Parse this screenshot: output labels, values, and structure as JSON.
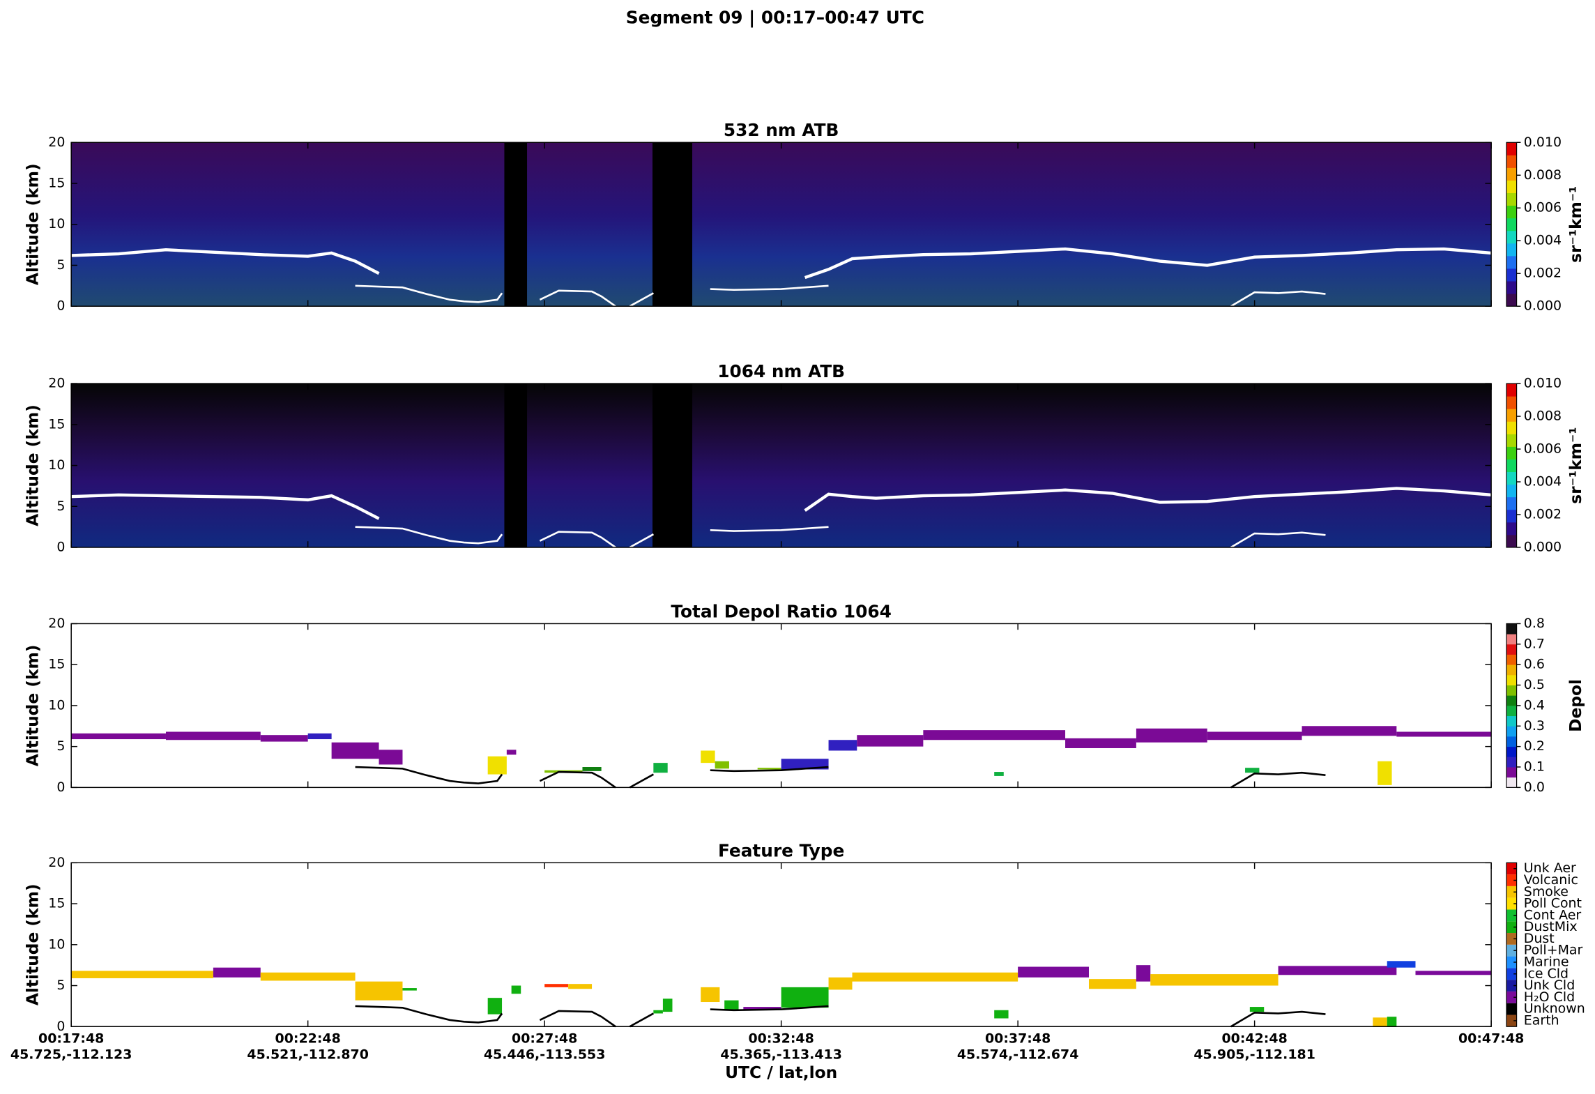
{
  "title": "Segment 09  |  00:17–00:47 UTC",
  "x_axis": {
    "xlim": [
      0,
      30
    ],
    "xlabel": "UTC / lat,lon",
    "xticks": [
      {
        "value": 0,
        "label": "00:17:48",
        "latlon": "45.725,-112.123"
      },
      {
        "value": 5,
        "label": "00:22:48",
        "latlon": "45.521,-112.870"
      },
      {
        "value": 10,
        "label": "00:27:48",
        "latlon": "45.446,-113.553"
      },
      {
        "value": 15,
        "label": "00:32:48",
        "latlon": "45.365,-113.413"
      },
      {
        "value": 20,
        "label": "00:37:48",
        "latlon": "45.574,-112.674"
      },
      {
        "value": 25,
        "label": "00:42:48",
        "latlon": "45.905,-112.181"
      },
      {
        "value": 30,
        "label": "00:47:48"
      }
    ]
  },
  "gaps": [
    [
      9.15,
      9.63
    ],
    [
      12.28,
      13.12
    ]
  ],
  "surface": {
    "x": [
      6.0,
      6.5,
      7.0,
      7.5,
      8.0,
      8.3,
      8.6,
      9.0,
      9.1,
      null,
      9.9,
      10.3,
      11.0,
      11.2,
      11.5,
      null,
      11.8,
      12.3,
      null,
      13.5,
      14.0,
      15.0,
      15.5,
      16.0,
      null,
      24.5,
      25.0,
      25.5,
      26.0,
      26.5
    ],
    "values": [
      2.5,
      2.4,
      2.3,
      1.5,
      0.8,
      0.6,
      0.5,
      0.8,
      1.6,
      null,
      0.8,
      1.9,
      1.8,
      1.2,
      0,
      null,
      0,
      1.6,
      null,
      2.1,
      2.0,
      2.1,
      2.3,
      2.5,
      null,
      0,
      1.7,
      1.6,
      1.8,
      1.5
    ]
  },
  "chart_data": [
    {
      "type": "curtain",
      "title": "532 nm ATB",
      "ylabel": "Altitude (km)",
      "ylim": [
        0,
        20
      ],
      "yticks": [
        0,
        5,
        10,
        15,
        20
      ],
      "background": "atb532",
      "surface_color": "#ffffff",
      "lines": [
        {
          "color": "#ffffff",
          "x": [
            0,
            1,
            2,
            3,
            4,
            5,
            5.5,
            6,
            6.5,
            null,
            15.5,
            16,
            16.5,
            17,
            18,
            19,
            20,
            21,
            22,
            23,
            24,
            25,
            26,
            27,
            28,
            29,
            30
          ],
          "values": [
            6.2,
            6.4,
            6.9,
            6.6,
            6.3,
            6.1,
            6.5,
            5.5,
            4.0,
            null,
            3.5,
            4.5,
            5.8,
            6.0,
            6.3,
            6.4,
            6.7,
            7.0,
            6.4,
            5.5,
            5.0,
            6.0,
            6.2,
            6.5,
            6.9,
            7.0,
            6.5
          ]
        }
      ],
      "colorbar": {
        "lim": [
          0,
          0.01
        ],
        "label": "sr⁻¹km⁻¹",
        "colors": [
          "#3b0a4f",
          "#2d0a8a",
          "#1a2fd0",
          "#1d6ff0",
          "#12b5f0",
          "#14d8c0",
          "#10d860",
          "#3cd010",
          "#a8d800",
          "#f0e000",
          "#f8a000",
          "#f05000",
          "#e00000"
        ],
        "ticks": [
          {
            "value": 0,
            "label": "0.000"
          },
          {
            "value": 0.002,
            "label": "0.002"
          },
          {
            "value": 0.004,
            "label": "0.004"
          },
          {
            "value": 0.006,
            "label": "0.006"
          },
          {
            "value": 0.008,
            "label": "0.008"
          },
          {
            "value": 0.01,
            "label": "0.010"
          }
        ]
      }
    },
    {
      "type": "curtain",
      "title": "1064 nm ATB",
      "ylabel": "Altitude (km)",
      "ylim": [
        0,
        20
      ],
      "yticks": [
        0,
        5,
        10,
        15,
        20
      ],
      "background": "atb1064",
      "surface_color": "#ffffff",
      "lines": [
        {
          "color": "#ffffff",
          "x": [
            0,
            1,
            2,
            3,
            4,
            5,
            5.5,
            6,
            6.5,
            null,
            15.5,
            16,
            16.5,
            17,
            18,
            19,
            20,
            21,
            22,
            23,
            24,
            25,
            26,
            27,
            28,
            29,
            30
          ],
          "values": [
            6.2,
            6.4,
            6.3,
            6.2,
            6.1,
            5.8,
            6.3,
            5.0,
            3.5,
            null,
            4.5,
            6.5,
            6.2,
            6.0,
            6.3,
            6.4,
            6.7,
            7.0,
            6.6,
            5.5,
            5.6,
            6.2,
            6.5,
            6.8,
            7.2,
            6.9,
            6.4
          ]
        }
      ],
      "colorbar": {
        "lim": [
          0,
          0.01
        ],
        "label": "sr⁻¹km⁻¹",
        "colors": [
          "#3b0a4f",
          "#2d0a8a",
          "#1a2fd0",
          "#1d6ff0",
          "#12b5f0",
          "#14d8c0",
          "#10d860",
          "#3cd010",
          "#a8d800",
          "#f0e000",
          "#f8a000",
          "#f05000",
          "#e00000"
        ],
        "ticks": [
          {
            "value": 0,
            "label": "0.000"
          },
          {
            "value": 0.002,
            "label": "0.002"
          },
          {
            "value": 0.004,
            "label": "0.004"
          },
          {
            "value": 0.006,
            "label": "0.006"
          },
          {
            "value": 0.008,
            "label": "0.008"
          },
          {
            "value": 0.01,
            "label": "0.010"
          }
        ]
      }
    },
    {
      "type": "blocks",
      "title": "Total Depol Ratio 1064",
      "ylabel": "Altitude (km)",
      "ylim": [
        0,
        20
      ],
      "yticks": [
        0,
        5,
        10,
        15,
        20
      ],
      "surface_color": "#000000",
      "blocks": [
        [
          0,
          2,
          5.9,
          6.6,
          0.07
        ],
        [
          2,
          4,
          5.8,
          6.8,
          0.07
        ],
        [
          4,
          5,
          5.6,
          6.4,
          0.07
        ],
        [
          5,
          5.5,
          5.9,
          6.6,
          0.12
        ],
        [
          5.5,
          6.5,
          3.5,
          5.5,
          0.07
        ],
        [
          6.5,
          7,
          2.8,
          4.6,
          0.07
        ],
        [
          8.8,
          9.2,
          1.6,
          3.8,
          0.52
        ],
        [
          9.2,
          9.4,
          4.0,
          4.6,
          0.07
        ],
        [
          10,
          10.8,
          1.8,
          2.1,
          0.45
        ],
        [
          10.8,
          11.2,
          2.0,
          2.5,
          0.4
        ],
        [
          12.3,
          12.6,
          1.8,
          3.0,
          0.38
        ],
        [
          13.3,
          13.6,
          3.0,
          4.5,
          0.52
        ],
        [
          13.6,
          13.9,
          2.3,
          3.2,
          0.48
        ],
        [
          14.5,
          15.0,
          2.2,
          2.4,
          0.45
        ],
        [
          15.0,
          16,
          2.2,
          3.5,
          0.12
        ],
        [
          16,
          16.6,
          4.5,
          5.8,
          0.12
        ],
        [
          16.6,
          18,
          5.0,
          6.4,
          0.07
        ],
        [
          18,
          21,
          5.8,
          7.0,
          0.07
        ],
        [
          21,
          22.5,
          4.8,
          6.0,
          0.07
        ],
        [
          22.5,
          24,
          5.5,
          7.2,
          0.07
        ],
        [
          24,
          26,
          5.8,
          6.8,
          0.07
        ],
        [
          26,
          28,
          6.3,
          7.5,
          0.07
        ],
        [
          28,
          30,
          6.2,
          6.8,
          0.07
        ],
        [
          19.5,
          19.7,
          1.4,
          1.9,
          0.36
        ],
        [
          24.8,
          25.1,
          1.8,
          2.4,
          0.36
        ],
        [
          27.6,
          27.9,
          0.3,
          3.2,
          0.52
        ]
      ],
      "colorbar": {
        "lim": [
          0,
          0.8
        ],
        "label": "Depol",
        "colors": [
          "#f0e8f0",
          "#7b0a96",
          "#3020c0",
          "#0018c8",
          "#0060e0",
          "#10a0f0",
          "#10c8c8",
          "#10b040",
          "#108010",
          "#80c000",
          "#f0e000",
          "#f0b000",
          "#f06000",
          "#e01010",
          "#f08080",
          "#101010"
        ],
        "ticks": [
          {
            "value": 0,
            "label": "0.0"
          },
          0.1,
          0.2,
          0.3,
          0.4,
          0.5,
          0.6,
          0.7,
          0.8
        ]
      }
    },
    {
      "type": "classes",
      "title": "Feature Type",
      "ylabel": "Altitude (km)",
      "ylim": [
        0,
        20
      ],
      "yticks": [
        0,
        5,
        10,
        15,
        20
      ],
      "surface_color": "#000000",
      "blocks": [
        [
          0,
          3,
          5.9,
          6.8,
          11
        ],
        [
          3,
          4,
          6.0,
          7.2,
          2
        ],
        [
          4,
          6,
          5.6,
          6.6,
          11
        ],
        [
          6,
          7,
          3.2,
          5.5,
          11
        ],
        [
          7.0,
          7.3,
          4.4,
          4.7,
          8
        ],
        [
          8.8,
          9.1,
          1.5,
          3.5,
          8
        ],
        [
          9.3,
          9.5,
          4.0,
          5.0,
          8
        ],
        [
          10,
          10.5,
          4.8,
          5.2,
          12
        ],
        [
          10.5,
          11,
          4.6,
          5.2,
          11
        ],
        [
          12.3,
          12.5,
          1.6,
          2.0,
          8
        ],
        [
          12.5,
          12.7,
          1.8,
          3.4,
          8
        ],
        [
          13.3,
          13.7,
          3.0,
          4.8,
          11
        ],
        [
          13.8,
          14.1,
          2.0,
          3.2,
          8
        ],
        [
          14.2,
          15,
          2.1,
          2.4,
          2
        ],
        [
          15,
          16,
          2.3,
          4.8,
          8
        ],
        [
          16,
          16.5,
          4.5,
          6.0,
          11
        ],
        [
          16.5,
          20,
          5.5,
          6.6,
          11
        ],
        [
          20,
          21.5,
          6.0,
          7.3,
          2
        ],
        [
          21.5,
          22.5,
          4.6,
          5.8,
          11
        ],
        [
          22.5,
          22.8,
          5.5,
          7.5,
          2
        ],
        [
          22.8,
          25.5,
          5.0,
          6.4,
          11
        ],
        [
          25.5,
          28,
          6.3,
          7.4,
          2
        ],
        [
          27.8,
          28.4,
          7.2,
          8.0,
          4
        ],
        [
          28.4,
          30,
          6.3,
          6.8,
          2
        ],
        [
          19.5,
          19.8,
          1.0,
          2.0,
          8
        ],
        [
          24.9,
          25.2,
          1.8,
          2.4,
          8
        ],
        [
          27.5,
          27.8,
          0,
          1.1,
          11
        ],
        [
          27.8,
          28.0,
          0,
          1.2,
          8
        ]
      ],
      "colorbar": {
        "classes": [
          {
            "name": "Earth",
            "color": "#8b4513"
          },
          {
            "name": "Unknown",
            "color": "#000000"
          },
          {
            "name": "H₂O Cld",
            "color": "#7a0a9a"
          },
          {
            "name": "Unk Cld",
            "color": "#1a1aa0"
          },
          {
            "name": "Ice Cld",
            "color": "#1040e0"
          },
          {
            "name": "Marine",
            "color": "#1e90ff"
          },
          {
            "name": "Poll+Mar",
            "color": "#60b0e0"
          },
          {
            "name": "Dust",
            "color": "#b06a20"
          },
          {
            "name": "DustMix",
            "color": "#10b010"
          },
          {
            "name": "Cont Aer",
            "color": "#10c030"
          },
          {
            "name": "Poll Cont",
            "color": "#ffe000"
          },
          {
            "name": "Smoke",
            "color": "#f6c400"
          },
          {
            "name": "Volcanic",
            "color": "#ff3000"
          },
          {
            "name": "Unk Aer",
            "color": "#e00000"
          }
        ]
      }
    }
  ]
}
